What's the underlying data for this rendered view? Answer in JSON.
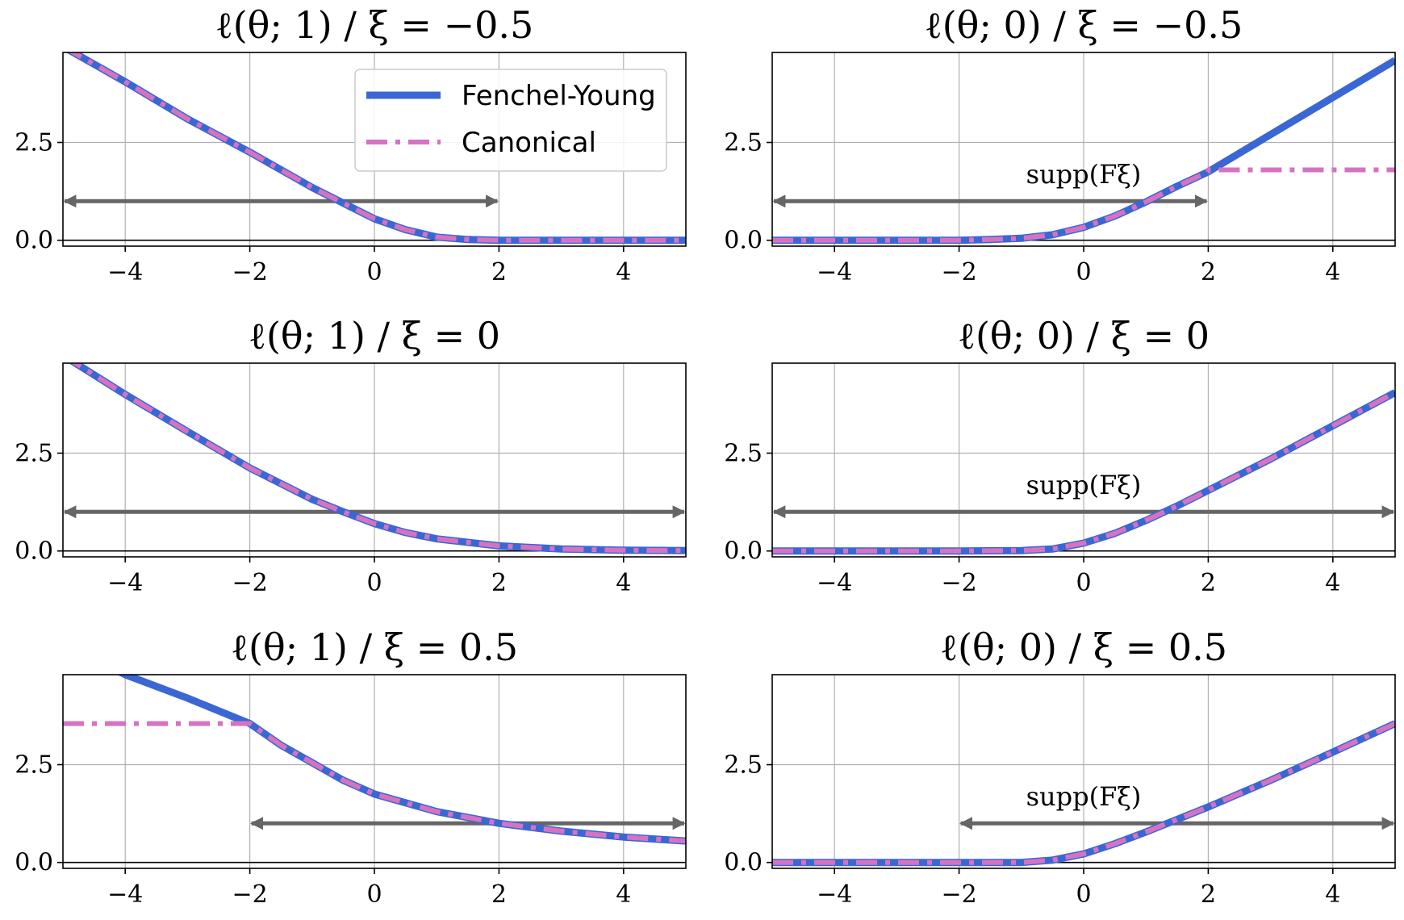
{
  "figure": {
    "legend": [
      {
        "label": "Fenchel-Young",
        "color": "#3a67d3",
        "style": "solid"
      },
      {
        "label": "Canonical",
        "color": "#d573c2",
        "style": "dashdot"
      }
    ],
    "colors": {
      "fenchel_young": "#3a67d3",
      "canonical": "#d573c2",
      "arrow": "#666666",
      "grid": "#b0b0b0"
    }
  },
  "chart_data": [
    {
      "type": "line",
      "title": "ℓ(θ; 1) / ξ = −0.5",
      "xlim": [
        -5,
        5
      ],
      "ylim": [
        -0.15,
        4.8
      ],
      "xticks": [
        -4,
        -2,
        0,
        2,
        4
      ],
      "xtick_labels": [
        "−4",
        "−2",
        "0",
        "2",
        "4"
      ],
      "yticks": [
        0,
        2.5
      ],
      "ytick_labels": [
        "0.0",
        "2.5"
      ],
      "grid": true,
      "legend_position": "top-right",
      "support_arrow": {
        "x": [
          -5,
          2
        ],
        "y": 1.0,
        "label": ""
      },
      "series": [
        {
          "name": "Fenchel-Young",
          "x": [
            -5,
            -4,
            -3,
            -2,
            -1,
            -0.5,
            0,
            0.5,
            1,
            1.5,
            2,
            3,
            4,
            5
          ],
          "y": [
            4.95,
            4.05,
            3.1,
            2.25,
            1.35,
            0.95,
            0.55,
            0.27,
            0.08,
            0.02,
            0.0,
            0.0,
            0.0,
            0.0
          ]
        },
        {
          "name": "Canonical",
          "x": [
            -5,
            -4,
            -3,
            -2,
            -1,
            -0.5,
            0,
            0.5,
            1,
            1.5,
            2,
            3,
            4,
            5
          ],
          "y": [
            4.95,
            4.05,
            3.1,
            2.25,
            1.35,
            0.95,
            0.55,
            0.27,
            0.08,
            0.02,
            0.0,
            0.0,
            0.0,
            0.0
          ]
        }
      ]
    },
    {
      "type": "line",
      "title": "ℓ(θ; 0) / ξ = −0.5",
      "xlim": [
        -5,
        5
      ],
      "ylim": [
        -0.15,
        4.8
      ],
      "xticks": [
        -4,
        -2,
        0,
        2,
        4
      ],
      "xtick_labels": [
        "−4",
        "−2",
        "0",
        "2",
        "4"
      ],
      "yticks": [
        0,
        2.5
      ],
      "ytick_labels": [
        "0.0",
        "2.5"
      ],
      "grid": true,
      "support_arrow": {
        "x": [
          -5,
          2
        ],
        "y": 1.0,
        "label": "supp(Fξ)"
      },
      "series": [
        {
          "name": "Fenchel-Young",
          "x": [
            -5,
            -3,
            -2,
            -1.5,
            -1,
            -0.5,
            0,
            0.5,
            1,
            1.5,
            2,
            3,
            4,
            5
          ],
          "y": [
            0.0,
            0.0,
            0.0,
            0.02,
            0.05,
            0.14,
            0.33,
            0.62,
            0.98,
            1.38,
            1.75,
            2.7,
            3.65,
            4.6
          ]
        },
        {
          "name": "Canonical",
          "x": [
            -5,
            -3,
            -2,
            -1.5,
            -1,
            -0.5,
            0,
            0.5,
            1,
            1.5,
            2,
            2,
            5
          ],
          "y": [
            0.0,
            0.0,
            0.0,
            0.02,
            0.05,
            0.14,
            0.33,
            0.62,
            0.98,
            1.38,
            1.75,
            1.8,
            1.8
          ]
        }
      ]
    },
    {
      "type": "line",
      "title": "ℓ(θ; 1) / ξ = 0",
      "xlim": [
        -5,
        5
      ],
      "ylim": [
        -0.15,
        4.8
      ],
      "xticks": [
        -4,
        -2,
        0,
        2,
        4
      ],
      "xtick_labels": [
        "−4",
        "−2",
        "0",
        "2",
        "4"
      ],
      "yticks": [
        0,
        2.5
      ],
      "ytick_labels": [
        "0.0",
        "2.5"
      ],
      "grid": true,
      "support_arrow": {
        "x": [
          -5,
          5
        ],
        "y": 1.0,
        "label": ""
      },
      "series": [
        {
          "name": "Fenchel-Young",
          "x": [
            -5,
            -4,
            -3,
            -2,
            -1,
            -0.5,
            0,
            0.5,
            1,
            2,
            3,
            4,
            5
          ],
          "y": [
            5.0,
            4.0,
            3.05,
            2.12,
            1.32,
            1.0,
            0.7,
            0.47,
            0.31,
            0.13,
            0.05,
            0.02,
            0.01
          ]
        },
        {
          "name": "Canonical",
          "x": [
            -5,
            -4,
            -3,
            -2,
            -1,
            -0.5,
            0,
            0.5,
            1,
            2,
            3,
            4,
            5
          ],
          "y": [
            5.0,
            4.0,
            3.05,
            2.12,
            1.32,
            1.0,
            0.7,
            0.47,
            0.31,
            0.13,
            0.05,
            0.02,
            0.01
          ]
        }
      ]
    },
    {
      "type": "line",
      "title": "ℓ(θ; 0) / ξ = 0",
      "xlim": [
        -5,
        5
      ],
      "ylim": [
        -0.15,
        4.8
      ],
      "xticks": [
        -4,
        -2,
        0,
        2,
        4
      ],
      "xtick_labels": [
        "−4",
        "−2",
        "0",
        "2",
        "4"
      ],
      "yticks": [
        0,
        2.5
      ],
      "ytick_labels": [
        "0.0",
        "2.5"
      ],
      "grid": true,
      "support_arrow": {
        "x": [
          -5,
          5
        ],
        "y": 1.0,
        "label": "supp(Fξ)"
      },
      "series": [
        {
          "name": "Fenchel-Young",
          "x": [
            -5,
            -3,
            -2,
            -1,
            -0.5,
            0,
            0.5,
            1,
            1.5,
            2,
            3,
            4,
            5
          ],
          "y": [
            0.0,
            0.0,
            0.0,
            0.01,
            0.05,
            0.2,
            0.45,
            0.78,
            1.15,
            1.55,
            2.35,
            3.2,
            4.05
          ]
        },
        {
          "name": "Canonical",
          "x": [
            -5,
            -3,
            -2,
            -1,
            -0.5,
            0,
            0.5,
            1,
            1.5,
            2,
            3,
            4,
            5
          ],
          "y": [
            0.0,
            0.0,
            0.0,
            0.01,
            0.05,
            0.2,
            0.45,
            0.78,
            1.15,
            1.55,
            2.35,
            3.2,
            4.05
          ]
        }
      ]
    },
    {
      "type": "line",
      "title": "ℓ(θ; 1) / ξ = 0.5",
      "xlim": [
        -5,
        5
      ],
      "ylim": [
        -0.15,
        4.8
      ],
      "xticks": [
        -4,
        -2,
        0,
        2,
        4
      ],
      "xtick_labels": [
        "−4",
        "−2",
        "0",
        "2",
        "4"
      ],
      "yticks": [
        0,
        2.5
      ],
      "ytick_labels": [
        "0.0",
        "2.5"
      ],
      "grid": true,
      "support_arrow": {
        "x": [
          -2,
          5
        ],
        "y": 1.0,
        "label": ""
      },
      "series": [
        {
          "name": "Fenchel-Young",
          "x": [
            -5,
            -4,
            -3,
            -2,
            -1.5,
            -1,
            -0.5,
            0,
            1,
            2,
            3,
            4,
            5
          ],
          "y": [
            5.6,
            4.8,
            4.2,
            3.55,
            3.0,
            2.55,
            2.1,
            1.75,
            1.3,
            1.0,
            0.8,
            0.65,
            0.55
          ]
        },
        {
          "name": "Canonical",
          "x": [
            -5,
            -2,
            -2,
            -1.5,
            -1,
            -0.5,
            0,
            1,
            2,
            3,
            4,
            5
          ],
          "y": [
            3.55,
            3.55,
            3.55,
            3.0,
            2.55,
            2.1,
            1.75,
            1.3,
            1.0,
            0.8,
            0.65,
            0.55
          ]
        }
      ]
    },
    {
      "type": "line",
      "title": "ℓ(θ; 0) / ξ = 0.5",
      "xlim": [
        -5,
        5
      ],
      "ylim": [
        -0.15,
        4.8
      ],
      "xticks": [
        -4,
        -2,
        0,
        2,
        4
      ],
      "xtick_labels": [
        "−4",
        "−2",
        "0",
        "2",
        "4"
      ],
      "yticks": [
        0,
        2.5
      ],
      "ytick_labels": [
        "0.0",
        "2.5"
      ],
      "grid": true,
      "support_arrow": {
        "x": [
          -2,
          5
        ],
        "y": 1.0,
        "label": "supp(Fξ)"
      },
      "series": [
        {
          "name": "Fenchel-Young",
          "x": [
            -5,
            -2,
            -1,
            -0.5,
            0,
            0.5,
            1,
            1.5,
            2,
            3,
            4,
            5
          ],
          "y": [
            0.0,
            0.0,
            0.0,
            0.06,
            0.22,
            0.48,
            0.78,
            1.1,
            1.42,
            2.1,
            2.82,
            3.55
          ]
        },
        {
          "name": "Canonical",
          "x": [
            -5,
            -2,
            -1,
            -0.5,
            0,
            0.5,
            1,
            1.5,
            2,
            3,
            4,
            5
          ],
          "y": [
            0.0,
            0.0,
            0.0,
            0.06,
            0.22,
            0.48,
            0.78,
            1.1,
            1.42,
            2.1,
            2.82,
            3.55
          ]
        }
      ]
    }
  ]
}
